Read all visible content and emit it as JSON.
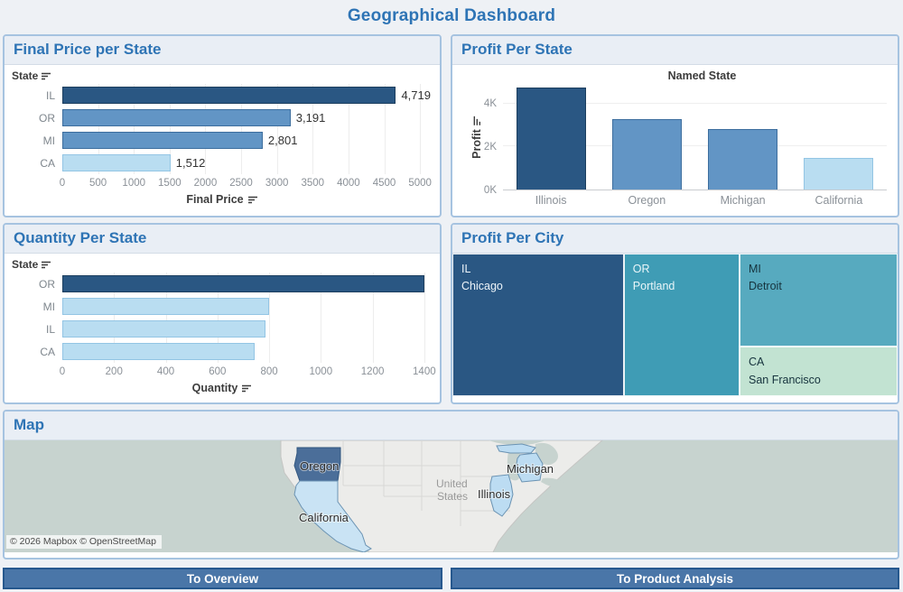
{
  "page": {
    "title": "Geographical Dashboard"
  },
  "palette": {
    "dark": "#2a5783",
    "medium": "#6295c5",
    "light": "#b9ddf1",
    "border_dark": "#1c3e5e",
    "border_medium": "#3d6e9e",
    "border_light": "#93c5e4",
    "accent_title": "#2e74b5",
    "button_fill": "#4a76a8",
    "button_border": "#26588e"
  },
  "chart_data": [
    {
      "type": "bar",
      "orientation": "horizontal",
      "panel_title": "Final Price per State",
      "row_header": "State",
      "xlabel": "Final Price",
      "categories": [
        "IL",
        "OR",
        "MI",
        "CA"
      ],
      "values": [
        4719,
        3191,
        2801,
        1512
      ],
      "value_labels": [
        "4,719",
        "3,191",
        "2,801",
        "1,512"
      ],
      "color_roles": [
        "dark",
        "medium",
        "medium",
        "light"
      ],
      "xlim": [
        0,
        5000
      ],
      "tick_step": 500,
      "scale_max": 5150,
      "grid": true
    },
    {
      "type": "bar",
      "orientation": "vertical",
      "panel_title": "Profit Per State",
      "column_header": "Named State",
      "ylabel": "Profit",
      "categories": [
        "Illinois",
        "Oregon",
        "Michigan",
        "California"
      ],
      "values": [
        4750,
        3250,
        2800,
        1450
      ],
      "yticks": [
        {
          "label": "0K",
          "value": 0
        },
        {
          "label": "2K",
          "value": 2000
        },
        {
          "label": "4K",
          "value": 4000
        }
      ],
      "ylim": [
        0,
        4900
      ],
      "color_roles": [
        "dark",
        "medium",
        "medium",
        "light"
      ],
      "grid": true
    },
    {
      "type": "bar",
      "orientation": "horizontal",
      "panel_title": "Quantity Per State",
      "row_header": "State",
      "xlabel": "Quantity",
      "categories": [
        "OR",
        "MI",
        "IL",
        "CA"
      ],
      "values": [
        1400,
        800,
        785,
        745
      ],
      "value_labels": null,
      "color_roles": [
        "dark",
        "light",
        "light",
        "light"
      ],
      "xlim": [
        0,
        1400
      ],
      "tick_step": 200,
      "scale_max": 1425,
      "grid": true
    },
    {
      "type": "treemap",
      "panel_title": "Profit Per City",
      "blocks": [
        {
          "state": "IL",
          "city": "Chicago",
          "value": 4750,
          "color": "#2a5783",
          "text_color": "#eef5fa",
          "x": 0,
          "y": 0,
          "w": 38.5,
          "h": 100
        },
        {
          "state": "OR",
          "city": "Portland",
          "value": 3250,
          "color": "#3f9cb5",
          "text_color": "#eaf6f9",
          "x": 38.5,
          "y": 0,
          "w": 26,
          "h": 100
        },
        {
          "state": "MI",
          "city": "Detroit",
          "value": 2800,
          "color": "#57aabf",
          "text_color": "#16333d",
          "x": 64.5,
          "y": 0,
          "w": 35.5,
          "h": 65.5
        },
        {
          "state": "CA",
          "city": "San Francisco",
          "value": 1450,
          "color": "#c2e3d2",
          "text_color": "#16333d",
          "x": 64.5,
          "y": 65.5,
          "w": 35.5,
          "h": 34.5
        }
      ]
    }
  ],
  "map": {
    "title": "Map",
    "attribution": "© 2026 Mapbox © OpenStreetMap",
    "country_label_line1": "United",
    "country_label_line2": "States",
    "ocean_color": "#c7d3cf",
    "land_color": "#ececea",
    "states": [
      {
        "name": "Oregon",
        "fill": "#4b6e99"
      },
      {
        "name": "California",
        "fill": "#c9e3f4"
      },
      {
        "name": "Michigan",
        "fill": "#bcdcf2"
      },
      {
        "name": "Illinois",
        "fill": "#bcdcf2"
      }
    ]
  },
  "buttons": [
    {
      "label": "To Overview"
    },
    {
      "label": "To Product Analysis"
    }
  ]
}
